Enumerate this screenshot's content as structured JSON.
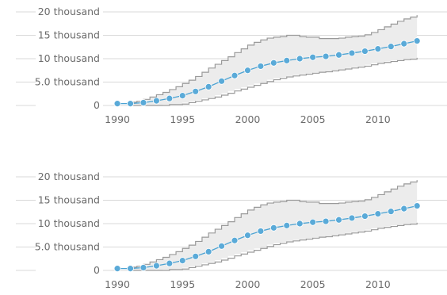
{
  "chart_data": [
    {
      "type": "line",
      "title": "",
      "xlabel": "",
      "ylabel": "",
      "xlim": [
        1988.9,
        2015.3
      ],
      "ylim": [
        0,
        20000
      ],
      "grid": "horizontal",
      "legend": "none",
      "x_ticks": [
        1990,
        1995,
        2000,
        2005,
        2010
      ],
      "x_tick_labels": [
        "1990",
        "1995",
        "2000",
        "2005",
        "2010"
      ],
      "y_ticks": [
        0,
        5000,
        10000,
        15000,
        20000
      ],
      "y_tick_labels": [
        "0",
        "5.0 thousand",
        "10 thousand",
        "15 thousand",
        "20 thousand"
      ],
      "x": [
        1990,
        1991,
        1992,
        1993,
        1994,
        1995,
        1996,
        1997,
        1998,
        1999,
        2000,
        2001,
        2002,
        2003,
        2004,
        2005,
        2006,
        2007,
        2008,
        2009,
        2010,
        2011,
        2012,
        2013
      ],
      "series": [
        {
          "values": [
            400,
            400,
            600,
            1000,
            1500,
            2100,
            3000,
            4000,
            5200,
            6400,
            7500,
            8400,
            9100,
            9600,
            10000,
            10300,
            10500,
            10800,
            11200,
            11600,
            12100,
            12600,
            13200,
            13800
          ]
        }
      ],
      "band": {
        "x": [
          1991.0,
          1991.5,
          1992.0,
          1992.5,
          1993.0,
          1993.5,
          1994.0,
          1994.5,
          1995.0,
          1995.5,
          1996.0,
          1996.5,
          1997.0,
          1997.5,
          1998.0,
          1998.5,
          1999.0,
          1999.5,
          2000.0,
          2000.5,
          2001.0,
          2001.5,
          2002.0,
          2002.5,
          2003.0,
          2003.5,
          2004.0,
          2004.5,
          2005.0,
          2005.5,
          2006.0,
          2006.5,
          2007.0,
          2007.5,
          2008.0,
          2008.5,
          2009.0,
          2009.5,
          2010.0,
          2010.5,
          2011.0,
          2011.5,
          2012.0,
          2012.5,
          2013.0
        ],
        "upper": [
          700,
          900,
          1300,
          1800,
          2300,
          2800,
          3400,
          4000,
          4700,
          5400,
          6200,
          7100,
          8000,
          8800,
          9600,
          10400,
          11300,
          12100,
          12900,
          13500,
          14000,
          14400,
          14600,
          14700,
          15000,
          15000,
          14700,
          14600,
          14600,
          14300,
          14300,
          14300,
          14400,
          14600,
          14700,
          14800,
          15100,
          15600,
          16200,
          16800,
          17400,
          18000,
          18500,
          18900,
          19300
        ],
        "lower": [
          0,
          0,
          0,
          0,
          0,
          0,
          200,
          200,
          300,
          600,
          900,
          1200,
          1500,
          1800,
          2200,
          2600,
          3100,
          3500,
          3900,
          4300,
          4700,
          5100,
          5500,
          5800,
          6100,
          6300,
          6500,
          6700,
          6900,
          7100,
          7200,
          7400,
          7600,
          7800,
          8000,
          8200,
          8400,
          8700,
          9000,
          9200,
          9400,
          9600,
          9800,
          9900,
          10200
        ]
      },
      "colors": {
        "line": "#4ba3d3",
        "marker": "#5aaad8",
        "band_fill": "#ececec",
        "band_edge": "#9a9a9a",
        "grid": "#d9d9d9",
        "axis_text": "#6b6b6b"
      }
    },
    {
      "type": "line",
      "title": "",
      "xlabel": "",
      "ylabel": "",
      "xlim": [
        1988.9,
        2015.3
      ],
      "ylim": [
        0,
        20000
      ],
      "grid": "horizontal",
      "legend": "none",
      "x_ticks": [
        1990,
        1995,
        2000,
        2005,
        2010
      ],
      "x_tick_labels": [
        "1990",
        "1995",
        "2000",
        "2005",
        "2010"
      ],
      "y_ticks": [
        0,
        5000,
        10000,
        15000,
        20000
      ],
      "y_tick_labels": [
        "0",
        "5.0 thousand",
        "10 thousand",
        "15 thousand",
        "20 thousand"
      ],
      "x": [
        1990,
        1991,
        1992,
        1993,
        1994,
        1995,
        1996,
        1997,
        1998,
        1999,
        2000,
        2001,
        2002,
        2003,
        2004,
        2005,
        2006,
        2007,
        2008,
        2009,
        2010,
        2011,
        2012,
        2013
      ],
      "series": [
        {
          "values": [
            400,
            400,
            600,
            1000,
            1500,
            2100,
            3000,
            4000,
            5200,
            6400,
            7500,
            8400,
            9100,
            9600,
            10000,
            10300,
            10500,
            10800,
            11200,
            11600,
            12100,
            12600,
            13200,
            13800
          ]
        }
      ],
      "band": {
        "x": [
          1991.0,
          1991.5,
          1992.0,
          1992.5,
          1993.0,
          1993.5,
          1994.0,
          1994.5,
          1995.0,
          1995.5,
          1996.0,
          1996.5,
          1997.0,
          1997.5,
          1998.0,
          1998.5,
          1999.0,
          1999.5,
          2000.0,
          2000.5,
          2001.0,
          2001.5,
          2002.0,
          2002.5,
          2003.0,
          2003.5,
          2004.0,
          2004.5,
          2005.0,
          2005.5,
          2006.0,
          2006.5,
          2007.0,
          2007.5,
          2008.0,
          2008.5,
          2009.0,
          2009.5,
          2010.0,
          2010.5,
          2011.0,
          2011.5,
          2012.0,
          2012.5,
          2013.0
        ],
        "upper": [
          700,
          900,
          1300,
          1800,
          2300,
          2800,
          3400,
          4000,
          4700,
          5400,
          6200,
          7100,
          8000,
          8800,
          9600,
          10400,
          11300,
          12100,
          12900,
          13500,
          14000,
          14400,
          14600,
          14700,
          15000,
          15000,
          14700,
          14600,
          14600,
          14300,
          14300,
          14300,
          14400,
          14600,
          14700,
          14800,
          15100,
          15600,
          16200,
          16800,
          17400,
          18000,
          18500,
          18900,
          19300
        ],
        "lower": [
          0,
          0,
          0,
          0,
          0,
          0,
          200,
          200,
          300,
          600,
          900,
          1200,
          1500,
          1800,
          2200,
          2600,
          3100,
          3500,
          3900,
          4300,
          4700,
          5100,
          5500,
          5800,
          6100,
          6300,
          6500,
          6700,
          6900,
          7100,
          7200,
          7400,
          7600,
          7800,
          8000,
          8200,
          8400,
          8700,
          9000,
          9200,
          9400,
          9600,
          9800,
          9900,
          10200
        ]
      },
      "colors": {
        "line": "#4ba3d3",
        "marker": "#5aaad8",
        "band_fill": "#ececec",
        "band_edge": "#9a9a9a",
        "grid": "#d9d9d9",
        "axis_text": "#6b6b6b"
      }
    }
  ]
}
